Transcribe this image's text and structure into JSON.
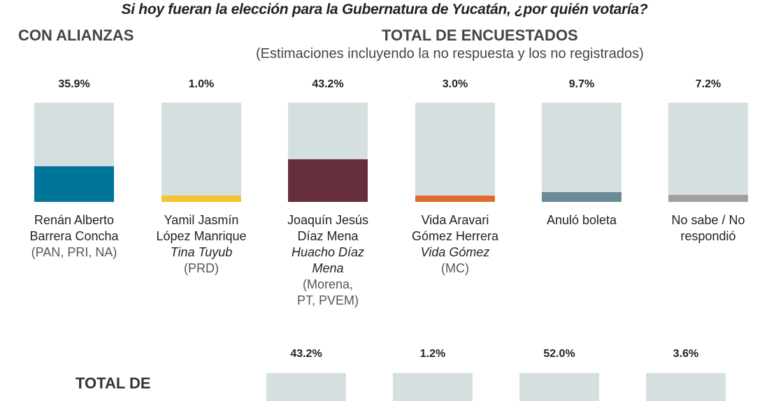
{
  "header": {
    "title": "Si hoy fueran la elección para la Gubernatura de Yucatán, ¿por quién votaría?",
    "left_heading": "CON ALIANZAS",
    "center_heading": "TOTAL DE ENCUESTADOS",
    "subheading": "(Estimaciones incluyendo la no respuesta y los no registrados)"
  },
  "chart_data": [
    {
      "type": "bar",
      "categories": [
        "Renán Alberto Barrera Concha",
        "Yamil Jasmín López Manrique",
        "Joaquín Jesús Díaz Mena",
        "Vida Aravari Gómez Herrera",
        "Anuló boleta",
        "No sabe / No respondió"
      ],
      "values": [
        35.9,
        1.0,
        43.2,
        3.0,
        9.7,
        7.2
      ],
      "value_labels": [
        "35.9%",
        "1.0%",
        "43.2%",
        "3.0%",
        "9.7%",
        "7.2%"
      ],
      "colors": [
        "#00759a",
        "#f5c42c",
        "#672e3d",
        "#e06a2c",
        "#6a8a96",
        "#a0a0a0"
      ],
      "ylim": [
        0,
        100
      ],
      "label_lines": [
        [
          {
            "t": "Renán Alberto",
            "s": ""
          },
          {
            "t": "Barrera Concha",
            "s": ""
          },
          {
            "t": "(PAN, PRI, NA)",
            "s": "pt"
          }
        ],
        [
          {
            "t": "Yamil Jasmín",
            "s": ""
          },
          {
            "t": "López Manrique",
            "s": ""
          },
          {
            "t": "Tina Tuyub",
            "s": "it"
          },
          {
            "t": "(PRD)",
            "s": "pt"
          }
        ],
        [
          {
            "t": "Joaquín Jesús",
            "s": ""
          },
          {
            "t": "Díaz Mena",
            "s": ""
          },
          {
            "t": "Huacho Díaz",
            "s": "it"
          },
          {
            "t": "Mena",
            "s": "it"
          },
          {
            "t": "(Morena,",
            "s": "pt"
          },
          {
            "t": "PT, PVEM)",
            "s": "pt"
          }
        ],
        [
          {
            "t": "Vida Aravari",
            "s": ""
          },
          {
            "t": "Gómez Herrera",
            "s": ""
          },
          {
            "t": "Vida Gómez",
            "s": "it"
          },
          {
            "t": "(MC)",
            "s": "pt"
          }
        ],
        [
          {
            "t": "Anuló boleta",
            "s": ""
          }
        ],
        [
          {
            "t": "No sabe / No",
            "s": ""
          },
          {
            "t": "respondió",
            "s": ""
          }
        ]
      ]
    },
    {
      "type": "bar",
      "title": "TOTAL DE",
      "values": [
        43.2,
        1.2,
        52.0,
        3.6
      ],
      "value_labels": [
        "43.2%",
        "1.2%",
        "52.0%",
        "3.6%"
      ]
    }
  ]
}
